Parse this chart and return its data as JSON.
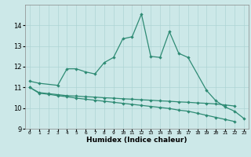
{
  "xlabel": "Humidex (Indice chaleur)",
  "x": [
    0,
    1,
    2,
    3,
    4,
    5,
    6,
    7,
    8,
    9,
    10,
    11,
    12,
    13,
    14,
    15,
    16,
    17,
    18,
    19,
    20,
    21,
    22,
    23
  ],
  "line1": [
    11.3,
    11.2,
    null,
    11.1,
    11.9,
    11.9,
    11.75,
    11.65,
    12.2,
    12.45,
    13.35,
    13.45,
    14.55,
    12.5,
    12.45,
    13.7,
    12.65,
    12.45,
    null,
    10.85,
    10.35,
    10.05,
    9.85,
    9.5
  ],
  "line2": [
    11.0,
    10.75,
    10.7,
    10.65,
    10.6,
    10.58,
    10.55,
    10.53,
    10.5,
    10.48,
    10.45,
    10.43,
    10.4,
    10.38,
    10.35,
    10.33,
    10.3,
    10.28,
    10.25,
    10.23,
    10.2,
    10.15,
    10.1,
    null
  ],
  "line3": [
    11.0,
    10.72,
    10.67,
    10.6,
    10.55,
    10.48,
    10.43,
    10.38,
    10.33,
    10.28,
    10.23,
    10.18,
    10.13,
    10.08,
    10.03,
    9.98,
    9.9,
    9.85,
    9.75,
    9.65,
    9.55,
    9.45,
    9.35,
    null
  ],
  "color": "#2e8b74",
  "bg_color": "#cce8e8",
  "grid_color": "#aed4d4",
  "ylim": [
    9.0,
    15.0
  ],
  "yticks": [
    9,
    10,
    11,
    12,
    13,
    14
  ],
  "marker": "D",
  "markersize": 2.2,
  "linewidth": 0.9
}
